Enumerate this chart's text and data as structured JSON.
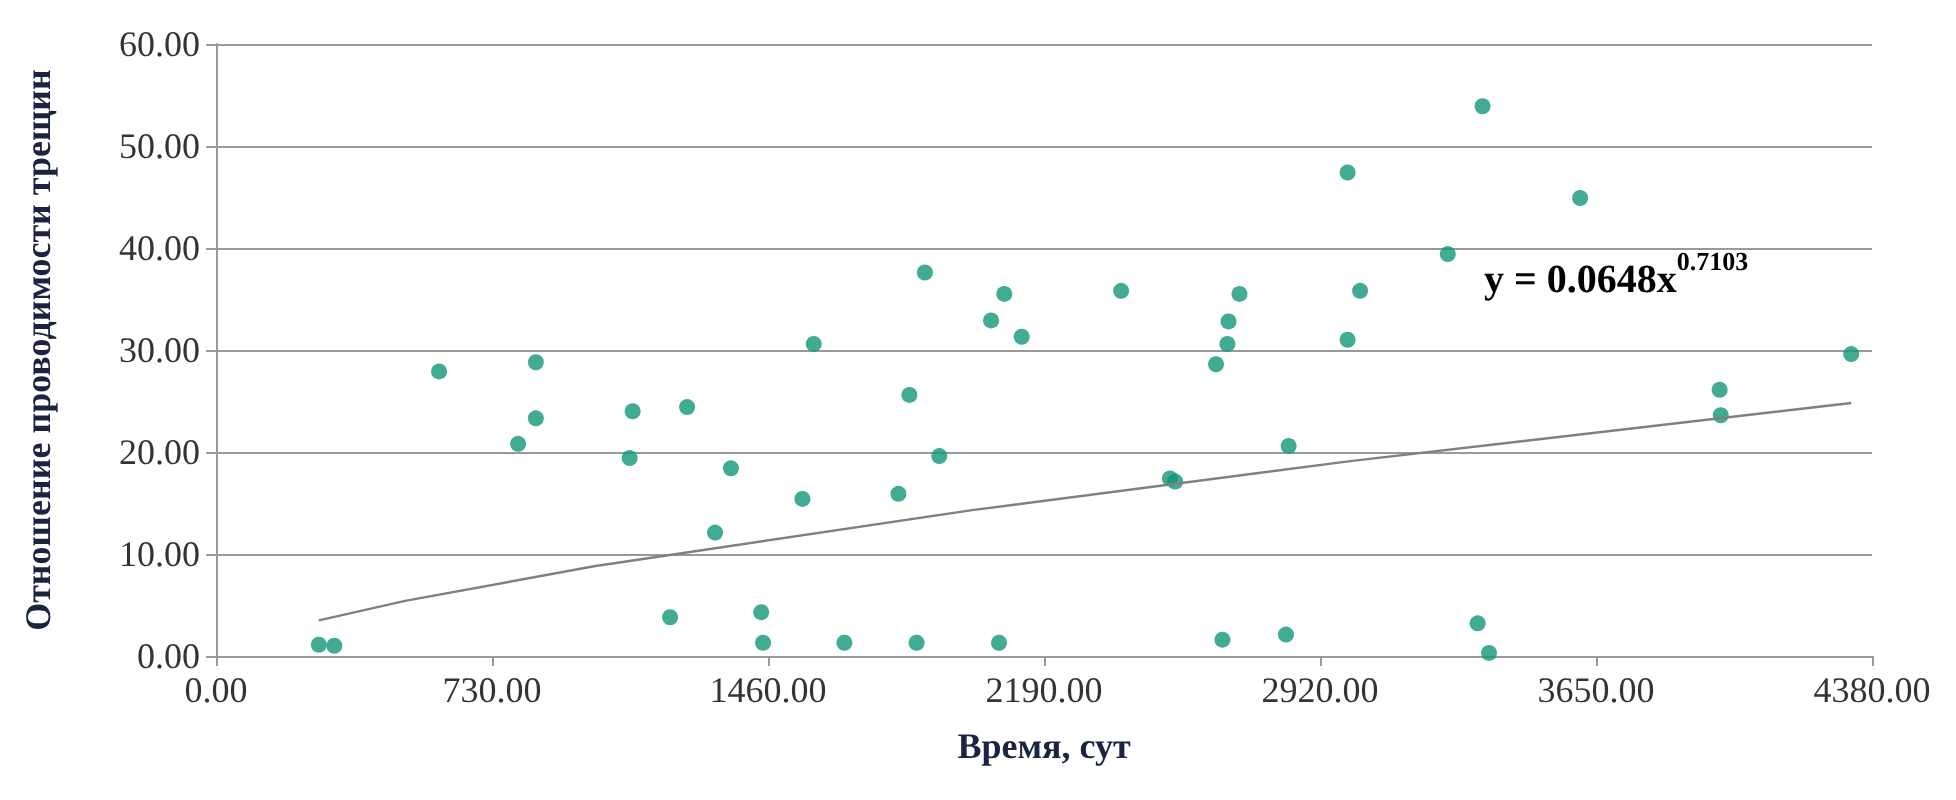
{
  "chart_data": {
    "type": "scatter",
    "xlabel": "Время, сут",
    "ylabel": "Отношение проводимости трещин",
    "annotations": [
      "y = 0.0648x$^{0.7103}$"
    ],
    "xlim": [
      0,
      4380
    ],
    "xticks": [
      {
        "value": 0,
        "label": "0.00"
      },
      {
        "value": 730,
        "label": "730.00"
      },
      {
        "value": 1460,
        "label": "1460.00"
      },
      {
        "value": 2190,
        "label": "2190.00"
      },
      {
        "value": 2920,
        "label": "2920.00"
      },
      {
        "value": 3650,
        "label": "3650.00"
      },
      {
        "value": 4380,
        "label": "4380.00"
      }
    ],
    "ylim": [
      0,
      60
    ],
    "yticks": [
      {
        "value": 0,
        "label": "0.00"
      },
      {
        "value": 10,
        "label": "10.00"
      },
      {
        "value": 20,
        "label": "20.00"
      },
      {
        "value": 30,
        "label": "30.00"
      },
      {
        "value": 40,
        "label": "40.00"
      },
      {
        "value": 50,
        "label": "50.00"
      },
      {
        "value": 60,
        "label": "60.00"
      }
    ],
    "grid": "y",
    "marker": "circle",
    "series": [
      {
        "color": "#139679",
        "x": [
          272,
          313,
          590,
          799,
          846,
          846,
          1102,
          1094,
          1246,
          1201,
          1362,
          1320,
          1442,
          1447,
          1551,
          1581,
          1662,
          1805,
          1834,
          1853,
          1875,
          1913,
          2050,
          2085,
          2131,
          2071,
          2394,
          2523,
          2537,
          2837,
          2645,
          2675,
          2678,
          2707,
          2662,
          2830,
          2993,
          2993,
          3026,
          3258,
          3350,
          3337,
          3367,
          3608,
          3977,
          3980,
          4325
        ],
        "values": [
          1.1,
          1.0,
          27.9,
          20.8,
          28.8,
          23.3,
          24.0,
          19.4,
          24.4,
          3.8,
          18.4,
          12.1,
          4.3,
          1.3,
          15.4,
          30.6,
          1.3,
          15.9,
          25.6,
          1.3,
          37.6,
          19.6,
          32.9,
          35.5,
          31.3,
          1.3,
          35.8,
          17.4,
          17.1,
          20.6,
          28.6,
          30.6,
          32.8,
          35.5,
          1.6,
          2.1,
          47.4,
          31.0,
          35.8,
          39.4,
          53.9,
          3.2,
          0.3,
          44.9,
          26.1,
          23.6,
          29.6
        ]
      },
      {
        "type": "line",
        "color": "#808080",
        "marker": "none",
        "line_style": "solid",
        "x": [
          272,
          500,
          1000,
          2000,
          3000,
          4325
        ],
        "values": [
          3.5,
          5.4,
          8.8,
          14.3,
          19.1,
          24.8
        ]
      }
    ]
  }
}
